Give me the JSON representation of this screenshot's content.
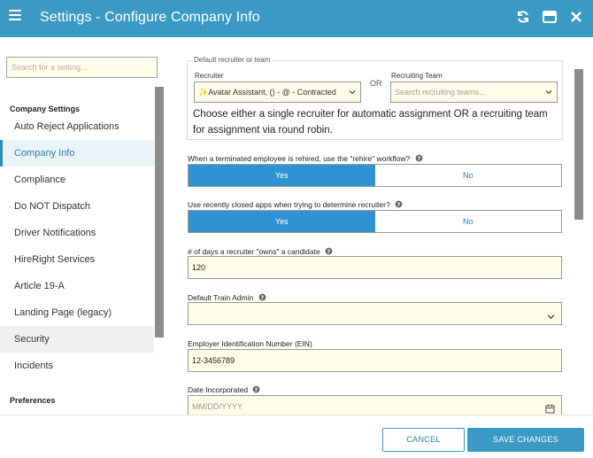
{
  "header": {
    "title": "Settings - Configure Company Info",
    "bg_color": "#3a9ac4",
    "icons": [
      "menu-icon",
      "refresh-icon",
      "window-icon",
      "close-icon"
    ]
  },
  "sidebar": {
    "search_placeholder": "Search for a setting...",
    "group_company": "Company Settings",
    "items": [
      {
        "label": "Auto Reject Applications"
      },
      {
        "label": "Company Info"
      },
      {
        "label": "Compliance"
      },
      {
        "label": "Do NOT Dispatch"
      },
      {
        "label": "Driver Notifications"
      },
      {
        "label": "HireRight Services"
      },
      {
        "label": "Article 19-A"
      },
      {
        "label": "Landing Page (legacy)"
      },
      {
        "label": "Security"
      },
      {
        "label": "Incidents"
      }
    ],
    "group_preferences": "Preferences",
    "active_item": "Company Info"
  },
  "main": {
    "recruiter_section": {
      "legend": "Default recruiter or team",
      "recruiter_label": "Recruiter",
      "recruiter_value": "✨Avatar Assistant, () - @ - Contracted",
      "or_text": "OR",
      "team_label": "Recruiting Team",
      "team_placeholder": "Search recruiting teams...",
      "hint": "Choose either a single recruiter for automatic assignment OR a recruiting team for assignment via round robin."
    },
    "rehire": {
      "label": "When a terminated employee is rehired, use the \"rehire\" workflow?",
      "yes": "Yes",
      "no": "No",
      "selected": "Yes"
    },
    "closed_apps": {
      "label": "Use recently closed apps when trying to determine recruiter?",
      "yes": "Yes",
      "no": "No",
      "selected": "Yes"
    },
    "days_owned": {
      "label": "# of days a recruiter \"owns\" a candidate",
      "value": "120"
    },
    "train_admin": {
      "label": "Default Train Admin",
      "value": ""
    },
    "ein": {
      "label": "Employer Identification Number (EIN)",
      "value": "12-3456789"
    },
    "date_incorporated": {
      "label": "Date Incorporated",
      "placeholder": "MM/DD/YYYY"
    }
  },
  "footer": {
    "cancel_label": "CANCEL",
    "save_label": "SAVE CHANGES"
  }
}
